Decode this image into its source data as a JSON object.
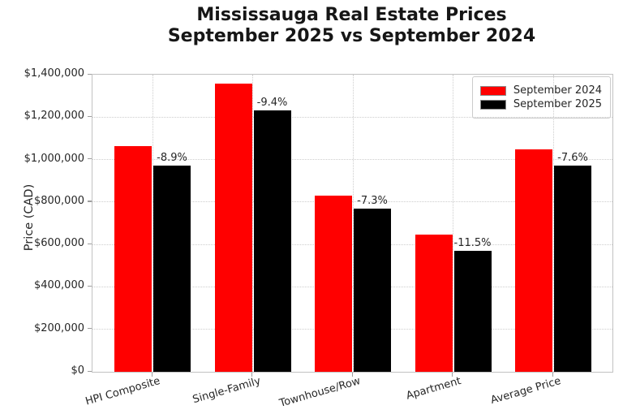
{
  "chart_data": {
    "type": "bar",
    "title_lines": [
      "Mississauga Real Estate Prices",
      "September 2025 vs September 2024"
    ],
    "title": "Mississauga Real Estate Prices September 2025 vs September 2024",
    "xlabel": "",
    "ylabel": "Price (CAD)",
    "categories": [
      "HPI Composite",
      "Single-Family",
      "Townhouse/Row",
      "Apartment",
      "Average Price"
    ],
    "series": [
      {
        "name": "September 2024",
        "color": "#ff0000",
        "values": [
          1065000,
          1360000,
          830000,
          645000,
          1050000
        ]
      },
      {
        "name": "September 2025",
        "color": "#000000",
        "values": [
          970000,
          1232000,
          769000,
          571000,
          970000
        ]
      }
    ],
    "annotations": [
      "-8.9%",
      "-9.4%",
      "-7.3%",
      "-11.5%",
      "-7.6%"
    ],
    "ylim": [
      0,
      1400000
    ],
    "ytick_step": 200000,
    "ytick_labels": [
      "$0",
      "$200,000",
      "$400,000",
      "$600,000",
      "$800,000",
      "$1,000,000",
      "$1,200,000",
      "$1,400,000"
    ],
    "grid": true,
    "grid_style": "dotted",
    "legend_position": "upper right",
    "colors": {
      "background": "#ffffff",
      "grid": "#cdcdcd",
      "spine": "#c2c2c2",
      "text": "#262626"
    }
  }
}
